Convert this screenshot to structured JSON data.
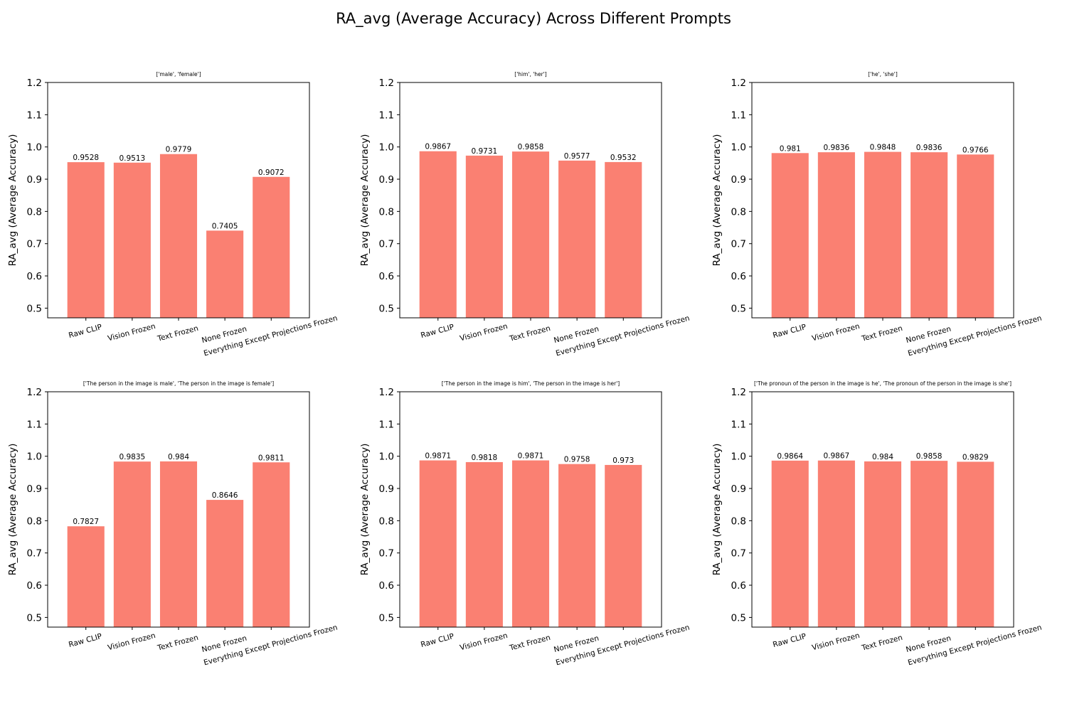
{
  "figure": {
    "title": "RA_avg (Average Accuracy) Across Different Prompts"
  },
  "colors": {
    "bar": "#fa8072",
    "axis": "#000000",
    "text": "#000000"
  },
  "chart_data": [
    {
      "type": "bar",
      "title": "['male', 'female']",
      "categories": [
        "Raw CLIP",
        "Vision Frozen",
        "Text Frozen",
        "None Frozen",
        "Everything Except Projections Frozen"
      ],
      "values": [
        0.9528,
        0.9513,
        0.9779,
        0.7405,
        0.9072
      ],
      "value_labels": [
        "0.9528",
        "0.9513",
        "0.9779",
        "0.7405",
        "0.9072"
      ],
      "xlabel": "",
      "ylabel": "RA_avg (Average Accuracy)",
      "ylim": [
        0.47,
        1.2
      ],
      "yticks": [
        "0.5",
        "0.6",
        "0.7",
        "0.8",
        "0.9",
        "1.0",
        "1.1",
        "1.2"
      ],
      "grid": false
    },
    {
      "type": "bar",
      "title": "['him', 'her']",
      "categories": [
        "Raw CLIP",
        "Vision Frozen",
        "Text Frozen",
        "None Frozen",
        "Everything Except Projections Frozen"
      ],
      "values": [
        0.9867,
        0.9731,
        0.9858,
        0.9577,
        0.9532
      ],
      "value_labels": [
        "0.9867",
        "0.9731",
        "0.9858",
        "0.9577",
        "0.9532"
      ],
      "xlabel": "",
      "ylabel": "RA_avg (Average Accuracy)",
      "ylim": [
        0.47,
        1.2
      ],
      "yticks": [
        "0.5",
        "0.6",
        "0.7",
        "0.8",
        "0.9",
        "1.0",
        "1.1",
        "1.2"
      ],
      "grid": false
    },
    {
      "type": "bar",
      "title": "['he', 'she']",
      "categories": [
        "Raw CLIP",
        "Vision Frozen",
        "Text Frozen",
        "None Frozen",
        "Everything Except Projections Frozen"
      ],
      "values": [
        0.981,
        0.9836,
        0.9848,
        0.9836,
        0.9766
      ],
      "value_labels": [
        "0.981",
        "0.9836",
        "0.9848",
        "0.9836",
        "0.9766"
      ],
      "xlabel": "",
      "ylabel": "RA_avg (Average Accuracy)",
      "ylim": [
        0.47,
        1.2
      ],
      "yticks": [
        "0.5",
        "0.6",
        "0.7",
        "0.8",
        "0.9",
        "1.0",
        "1.1",
        "1.2"
      ],
      "grid": false
    },
    {
      "type": "bar",
      "title": "['The person in the image is male', 'The person in the image is female']",
      "categories": [
        "Raw CLIP",
        "Vision Frozen",
        "Text Frozen",
        "None Frozen",
        "Everything Except Projections Frozen"
      ],
      "values": [
        0.7827,
        0.9835,
        0.984,
        0.8646,
        0.9811
      ],
      "value_labels": [
        "0.7827",
        "0.9835",
        "0.984",
        "0.8646",
        "0.9811"
      ],
      "xlabel": "",
      "ylabel": "RA_avg (Average Accuracy)",
      "ylim": [
        0.47,
        1.2
      ],
      "yticks": [
        "0.5",
        "0.6",
        "0.7",
        "0.8",
        "0.9",
        "1.0",
        "1.1",
        "1.2"
      ],
      "grid": false
    },
    {
      "type": "bar",
      "title": "['The person in the image is him', 'The person in the image is her']",
      "categories": [
        "Raw CLIP",
        "Vision Frozen",
        "Text Frozen",
        "None Frozen",
        "Everything Except Projections Frozen"
      ],
      "values": [
        0.9871,
        0.9818,
        0.9871,
        0.9758,
        0.973
      ],
      "value_labels": [
        "0.9871",
        "0.9818",
        "0.9871",
        "0.9758",
        "0.973"
      ],
      "xlabel": "",
      "ylabel": "RA_avg (Average Accuracy)",
      "ylim": [
        0.47,
        1.2
      ],
      "yticks": [
        "0.5",
        "0.6",
        "0.7",
        "0.8",
        "0.9",
        "1.0",
        "1.1",
        "1.2"
      ],
      "grid": false
    },
    {
      "type": "bar",
      "title": "['The pronoun of the person in the image is he', 'The pronoun of the person in the image is she']",
      "categories": [
        "Raw CLIP",
        "Vision Frozen",
        "Text Frozen",
        "None Frozen",
        "Everything Except Projections Frozen"
      ],
      "values": [
        0.9864,
        0.9867,
        0.984,
        0.9858,
        0.9829
      ],
      "value_labels": [
        "0.9864",
        "0.9867",
        "0.984",
        "0.9858",
        "0.9829"
      ],
      "xlabel": "",
      "ylabel": "RA_avg (Average Accuracy)",
      "ylim": [
        0.47,
        1.2
      ],
      "yticks": [
        "0.5",
        "0.6",
        "0.7",
        "0.8",
        "0.9",
        "1.0",
        "1.1",
        "1.2"
      ],
      "grid": false
    }
  ]
}
